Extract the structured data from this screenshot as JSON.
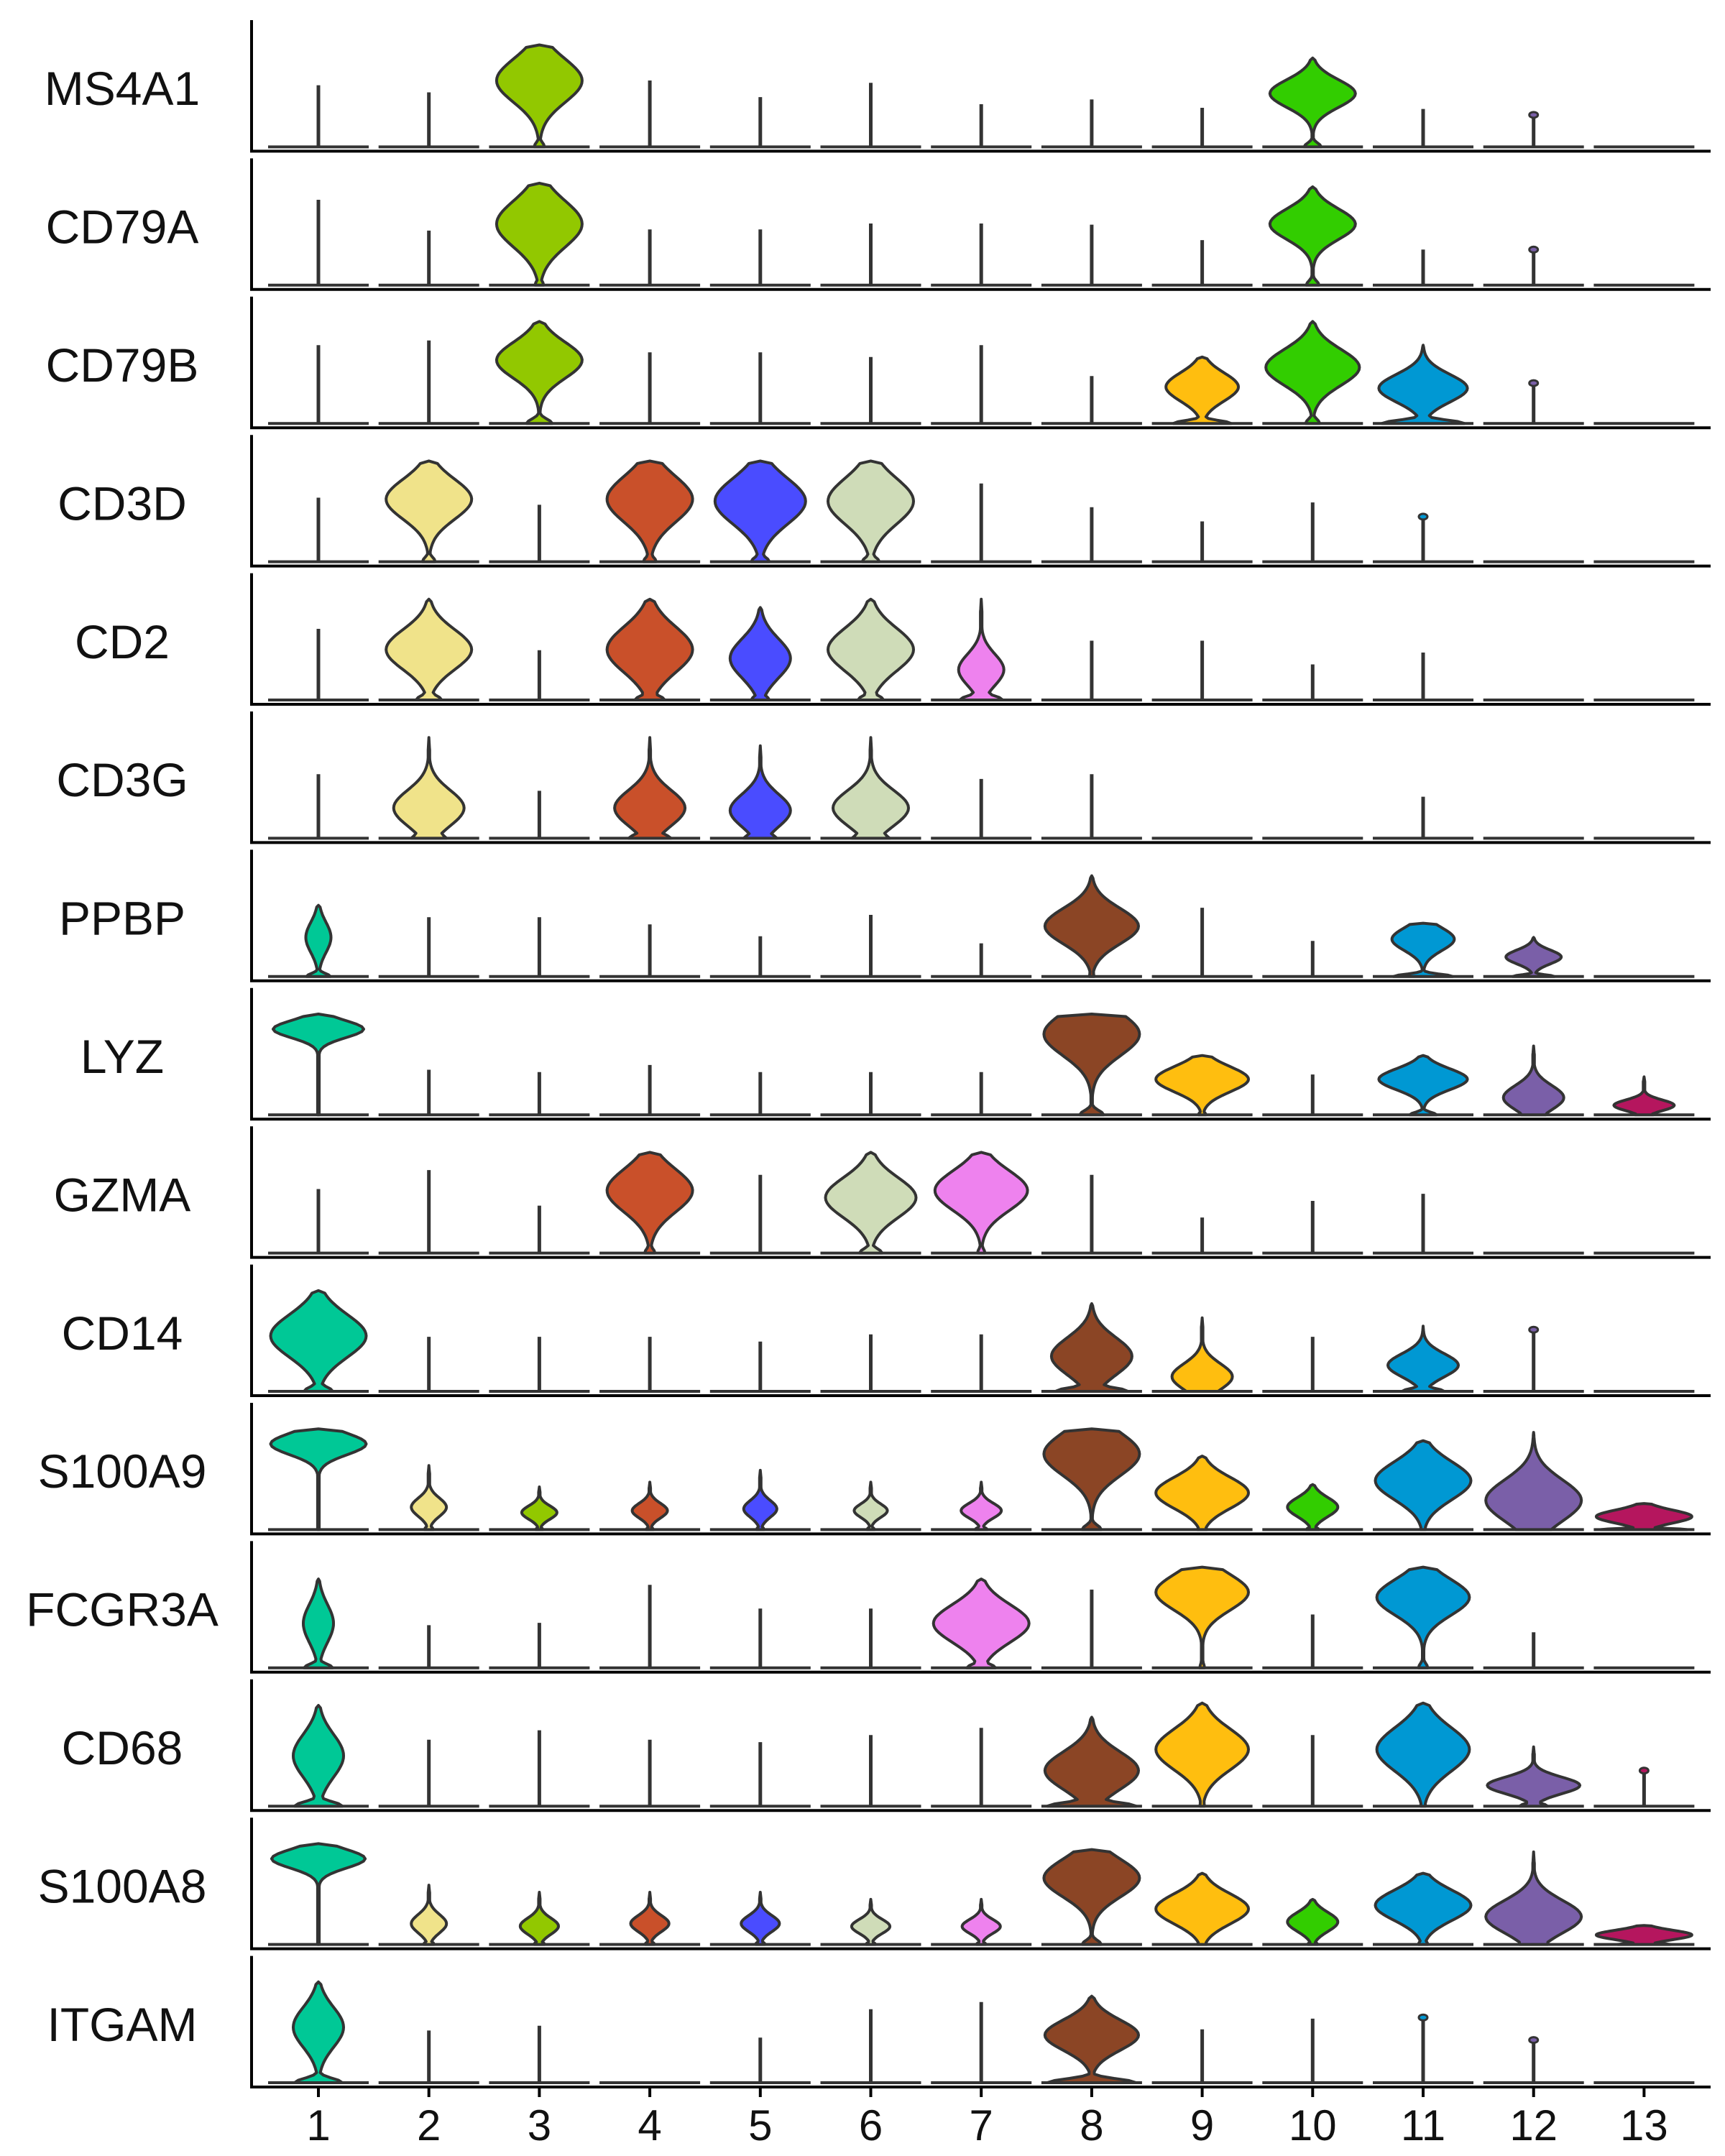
{
  "chart_data": {
    "type": "violin",
    "title": "",
    "xlabel": "",
    "ylabel": "",
    "categories": [
      "1",
      "2",
      "3",
      "4",
      "5",
      "6",
      "7",
      "8",
      "9",
      "10",
      "11",
      "12",
      "13"
    ],
    "colors": [
      "#00c896",
      "#f0e38a",
      "#92c800",
      "#c9502a",
      "#4a4cff",
      "#cfdcb8",
      "#ee82ee",
      "#8b4525",
      "#ffbe0f",
      "#32cd00",
      "#0098d3",
      "#7a5fa8",
      "#b5165e"
    ],
    "genes": [
      "MS4A1",
      "CD79A",
      "CD79B",
      "CD3D",
      "CD2",
      "CD3G",
      "PPBP",
      "LYZ",
      "GZMA",
      "CD14",
      "S100A9",
      "FCGR3A",
      "CD68",
      "S100A8",
      "ITGAM"
    ],
    "violins": [
      [
        {
          "h": 0.52
        },
        {
          "h": 0.46
        },
        {
          "h": 0.86,
          "w": 0.85,
          "p": 0.65,
          "s": 0.3,
          "b": 0.12
        },
        {
          "h": 0.56
        },
        {
          "h": 0.42
        },
        {
          "h": 0.54
        },
        {
          "h": 0.36
        },
        {
          "h": 0.4
        },
        {
          "h": 0.33
        },
        {
          "h": 0.75,
          "w": 0.85,
          "p": 0.6,
          "s": 0.22,
          "b": 0.2
        },
        {
          "h": 0.32
        },
        {
          "h": 0.27,
          "dot": true
        },
        {
          "h": 0.01
        }
      ],
      [
        {
          "h": 0.72
        },
        {
          "h": 0.46
        },
        {
          "h": 0.86,
          "w": 0.85,
          "p": 0.6,
          "s": 0.32,
          "b": 0.1
        },
        {
          "h": 0.47
        },
        {
          "h": 0.47
        },
        {
          "h": 0.52
        },
        {
          "h": 0.52
        },
        {
          "h": 0.51
        },
        {
          "h": 0.38
        },
        {
          "h": 0.83,
          "w": 0.85,
          "p": 0.62,
          "s": 0.22,
          "b": 0.15
        },
        {
          "h": 0.3
        },
        {
          "h": 0.3,
          "dot": true
        },
        {
          "h": 0.01
        }
      ],
      [
        {
          "h": 0.66
        },
        {
          "h": 0.7
        },
        {
          "h": 0.86,
          "w": 0.85,
          "p": 0.62,
          "s": 0.25,
          "b": 0.3
        },
        {
          "h": 0.6
        },
        {
          "h": 0.6
        },
        {
          "h": 0.56
        },
        {
          "h": 0.66
        },
        {
          "h": 0.4
        },
        {
          "h": 0.56,
          "w": 0.72,
          "p": 0.55,
          "s": 0.3,
          "b": 0.8
        },
        {
          "h": 0.86,
          "w": 0.93,
          "p": 0.55,
          "s": 0.25,
          "b": 0.15
        },
        {
          "h": 0.66,
          "w": 0.88,
          "p": 0.45,
          "s": 0.25,
          "b": 0.93
        },
        {
          "h": 0.34,
          "dot": true
        },
        {
          "h": 0.01
        }
      ],
      [
        {
          "h": 0.54
        },
        {
          "h": 0.85,
          "w": 0.85,
          "p": 0.62,
          "s": 0.28,
          "b": 0.15
        },
        {
          "h": 0.48
        },
        {
          "h": 0.85,
          "w": 0.85,
          "p": 0.62,
          "s": 0.32,
          "b": 0.15
        },
        {
          "h": 0.85,
          "w": 0.9,
          "p": 0.6,
          "s": 0.32,
          "b": 0.2
        },
        {
          "h": 0.85,
          "w": 0.85,
          "p": 0.6,
          "s": 0.32,
          "b": 0.2
        },
        {
          "h": 0.66
        },
        {
          "h": 0.46
        },
        {
          "h": 0.34
        },
        {
          "h": 0.5
        },
        {
          "h": 0.38,
          "dot": true
        },
        {
          "h": 0.01
        },
        {
          "h": 0.01
        }
      ],
      [
        {
          "h": 0.6
        },
        {
          "h": 0.85,
          "w": 0.85,
          "p": 0.5,
          "s": 0.28,
          "b": 0.3
        },
        {
          "h": 0.42
        },
        {
          "h": 0.85,
          "w": 0.85,
          "p": 0.5,
          "s": 0.32,
          "b": 0.35
        },
        {
          "h": 0.78,
          "w": 0.6,
          "p": 0.45,
          "s": 0.3,
          "b": 0.3
        },
        {
          "h": 0.85,
          "w": 0.85,
          "p": 0.5,
          "s": 0.3,
          "b": 0.3
        },
        {
          "h": 0.85,
          "w": 0.45,
          "p": 0.3,
          "s": 0.22,
          "b": 0.95
        },
        {
          "h": 0.5
        },
        {
          "h": 0.5
        },
        {
          "h": 0.3
        },
        {
          "h": 0.4
        },
        {
          "h": 0.01
        },
        {
          "h": 0.01
        }
      ],
      [
        {
          "h": 0.54
        },
        {
          "h": 0.85,
          "w": 0.7,
          "p": 0.3,
          "s": 0.25,
          "b": 0.5
        },
        {
          "h": 0.4
        },
        {
          "h": 0.85,
          "w": 0.7,
          "p": 0.3,
          "s": 0.25,
          "b": 0.6
        },
        {
          "h": 0.78,
          "w": 0.6,
          "p": 0.3,
          "s": 0.25,
          "b": 0.55
        },
        {
          "h": 0.85,
          "w": 0.75,
          "p": 0.3,
          "s": 0.25,
          "b": 0.5
        },
        {
          "h": 0.5
        },
        {
          "h": 0.54
        },
        {
          "h": 0.01
        },
        {
          "h": 0.01
        },
        {
          "h": 0.35
        },
        {
          "h": 0.01
        },
        {
          "h": 0.01
        }
      ],
      [
        {
          "h": 0.6,
          "w": 0.25,
          "p": 0.55,
          "s": 0.3,
          "b": 0.95
        },
        {
          "h": 0.5
        },
        {
          "h": 0.5
        },
        {
          "h": 0.44
        },
        {
          "h": 0.34
        },
        {
          "h": 0.52
        },
        {
          "h": 0.28
        },
        {
          "h": 0.85,
          "w": 0.93,
          "p": 0.5,
          "s": 0.25,
          "b": 0.05
        },
        {
          "h": 0.58
        },
        {
          "h": 0.3
        },
        {
          "h": 0.45,
          "w": 0.62,
          "p": 0.7,
          "s": 0.3,
          "b": 0.95
        },
        {
          "h": 0.33,
          "w": 0.55,
          "p": 0.5,
          "s": 0.25,
          "b": 0.75
        },
        {
          "h": 0.01
        }
      ],
      [
        {
          "h": 0.85,
          "w": 0.9,
          "p": 0.85,
          "s": 0.12,
          "b": 0.0
        },
        {
          "h": 0.38
        },
        {
          "h": 0.36
        },
        {
          "h": 0.42
        },
        {
          "h": 0.36
        },
        {
          "h": 0.36
        },
        {
          "h": 0.36
        },
        {
          "h": 0.85,
          "w": 0.95,
          "p": 0.8,
          "s": 0.3,
          "b": 0.25
        },
        {
          "h": 0.5,
          "w": 0.92,
          "p": 0.6,
          "s": 0.3,
          "b": 0.08
        },
        {
          "h": 0.34
        },
        {
          "h": 0.5,
          "w": 0.88,
          "p": 0.6,
          "s": 0.25,
          "b": 0.3
        },
        {
          "h": 0.58,
          "w": 0.6,
          "p": 0.25,
          "s": 0.25,
          "b": 0.4
        },
        {
          "h": 0.32,
          "w": 0.6,
          "p": 0.25,
          "s": 0.2,
          "b": 0.3
        }
      ],
      [
        {
          "h": 0.54
        },
        {
          "h": 0.7
        },
        {
          "h": 0.4
        },
        {
          "h": 0.85,
          "w": 0.85,
          "p": 0.62,
          "s": 0.3,
          "b": 0.12
        },
        {
          "h": 0.66
        },
        {
          "h": 0.85,
          "w": 0.9,
          "p": 0.55,
          "s": 0.28,
          "b": 0.25
        },
        {
          "h": 0.85,
          "w": 0.92,
          "p": 0.62,
          "s": 0.28,
          "b": 0.08
        },
        {
          "h": 0.66
        },
        {
          "h": 0.3
        },
        {
          "h": 0.44
        },
        {
          "h": 0.5
        },
        {
          "h": 0.01
        },
        {
          "h": 0.01
        }
      ],
      [
        {
          "h": 0.85,
          "w": 0.95,
          "p": 0.55,
          "s": 0.3,
          "b": 0.3
        },
        {
          "h": 0.46
        },
        {
          "h": 0.46
        },
        {
          "h": 0.46
        },
        {
          "h": 0.42
        },
        {
          "h": 0.48
        },
        {
          "h": 0.48
        },
        {
          "h": 0.74,
          "w": 0.8,
          "p": 0.4,
          "s": 0.3,
          "b": 0.9
        },
        {
          "h": 0.62,
          "w": 0.6,
          "p": 0.2,
          "s": 0.25,
          "b": 0.25
        },
        {
          "h": 0.46
        },
        {
          "h": 0.55,
          "w": 0.7,
          "p": 0.4,
          "s": 0.25,
          "b": 0.6
        },
        {
          "h": 0.52,
          "dot": true
        },
        {
          "h": 0.01
        }
      ],
      [
        {
          "h": 0.85,
          "w": 0.95,
          "p": 0.85,
          "s": 0.15,
          "b": 0.0
        },
        {
          "h": 0.54,
          "w": 0.35,
          "p": 0.35,
          "s": 0.2,
          "b": 0.25
        },
        {
          "h": 0.36,
          "w": 0.35,
          "p": 0.4,
          "s": 0.22,
          "b": 0.2
        },
        {
          "h": 0.4,
          "w": 0.35,
          "p": 0.4,
          "s": 0.22,
          "b": 0.2
        },
        {
          "h": 0.5,
          "w": 0.33,
          "p": 0.35,
          "s": 0.2,
          "b": 0.22
        },
        {
          "h": 0.4,
          "w": 0.33,
          "p": 0.4,
          "s": 0.2,
          "b": 0.22
        },
        {
          "h": 0.4,
          "w": 0.4,
          "p": 0.4,
          "s": 0.22,
          "b": 0.3
        },
        {
          "h": 0.85,
          "w": 0.95,
          "p": 0.75,
          "s": 0.3,
          "b": 0.2
        },
        {
          "h": 0.62,
          "w": 0.92,
          "p": 0.5,
          "s": 0.3,
          "b": 0.1
        },
        {
          "h": 0.38,
          "w": 0.5,
          "p": 0.5,
          "s": 0.3,
          "b": 0.25
        },
        {
          "h": 0.75,
          "w": 0.95,
          "p": 0.55,
          "s": 0.3,
          "b": 0.05
        },
        {
          "h": 0.82,
          "w": 0.95,
          "p": 0.3,
          "s": 0.3,
          "b": 0.1
        },
        {
          "h": 0.22,
          "w": 0.95,
          "p": 0.5,
          "s": 0.35,
          "b": 0.9
        }
      ],
      [
        {
          "h": 0.75,
          "w": 0.3,
          "p": 0.5,
          "s": 0.3,
          "b": 0.95
        },
        {
          "h": 0.36
        },
        {
          "h": 0.38
        },
        {
          "h": 0.7
        },
        {
          "h": 0.5
        },
        {
          "h": 0.5
        },
        {
          "h": 0.75,
          "w": 0.95,
          "p": 0.5,
          "s": 0.3,
          "b": 0.3
        },
        {
          "h": 0.66
        },
        {
          "h": 0.85,
          "w": 0.92,
          "p": 0.75,
          "s": 0.25,
          "b": 0.05
        },
        {
          "h": 0.45
        },
        {
          "h": 0.85,
          "w": 0.92,
          "p": 0.7,
          "s": 0.25,
          "b": 0.1
        },
        {
          "h": 0.3
        },
        {
          "h": 0.01
        }
      ],
      [
        {
          "h": 0.85,
          "w": 0.5,
          "p": 0.5,
          "s": 0.3,
          "b": 0.95
        },
        {
          "h": 0.56
        },
        {
          "h": 0.64
        },
        {
          "h": 0.56
        },
        {
          "h": 0.54
        },
        {
          "h": 0.6
        },
        {
          "h": 0.66
        },
        {
          "h": 0.75,
          "w": 0.93,
          "p": 0.4,
          "s": 0.3,
          "b": 0.95
        },
        {
          "h": 0.87,
          "w": 0.92,
          "p": 0.55,
          "s": 0.28,
          "b": 0.05
        },
        {
          "h": 0.6
        },
        {
          "h": 0.87,
          "w": 0.92,
          "p": 0.55,
          "s": 0.3,
          "b": 0.05
        },
        {
          "h": 0.5,
          "w": 0.92,
          "p": 0.35,
          "s": 0.2,
          "b": 0.3
        },
        {
          "h": 0.3,
          "dot": true
        }
      ],
      [
        {
          "h": 0.85,
          "w": 0.93,
          "p": 0.85,
          "s": 0.13,
          "b": 0.0
        },
        {
          "h": 0.5,
          "w": 0.35,
          "p": 0.35,
          "s": 0.22,
          "b": 0.3
        },
        {
          "h": 0.44,
          "w": 0.38,
          "p": 0.35,
          "s": 0.22,
          "b": 0.28
        },
        {
          "h": 0.44,
          "w": 0.38,
          "p": 0.4,
          "s": 0.22,
          "b": 0.25
        },
        {
          "h": 0.44,
          "w": 0.38,
          "p": 0.4,
          "s": 0.22,
          "b": 0.25
        },
        {
          "h": 0.38,
          "w": 0.38,
          "p": 0.4,
          "s": 0.22,
          "b": 0.25
        },
        {
          "h": 0.38,
          "w": 0.38,
          "p": 0.4,
          "s": 0.22,
          "b": 0.25
        },
        {
          "h": 0.8,
          "w": 0.95,
          "p": 0.7,
          "s": 0.28,
          "b": 0.2
        },
        {
          "h": 0.6,
          "w": 0.92,
          "p": 0.5,
          "s": 0.3,
          "b": 0.1
        },
        {
          "h": 0.38,
          "w": 0.5,
          "p": 0.5,
          "s": 0.3,
          "b": 0.2
        },
        {
          "h": 0.6,
          "w": 0.95,
          "p": 0.55,
          "s": 0.3,
          "b": 0.1
        },
        {
          "h": 0.78,
          "w": 0.95,
          "p": 0.3,
          "s": 0.25,
          "b": 0.3
        },
        {
          "h": 0.16,
          "w": 0.95,
          "p": 0.5,
          "s": 0.35,
          "b": 0.55
        }
      ],
      [
        {
          "h": 0.85,
          "w": 0.5,
          "p": 0.55,
          "s": 0.28,
          "b": 0.95
        },
        {
          "h": 0.44
        },
        {
          "h": 0.48
        },
        {
          "h": 0.01
        },
        {
          "h": 0.38
        },
        {
          "h": 0.62
        },
        {
          "h": 0.68
        },
        {
          "h": 0.73,
          "w": 0.93,
          "p": 0.55,
          "s": 0.25,
          "b": 0.95
        },
        {
          "h": 0.45
        },
        {
          "h": 0.54
        },
        {
          "h": 0.55,
          "dot": true
        },
        {
          "h": 0.36,
          "dot": true
        },
        {
          "h": 0.01
        }
      ]
    ]
  }
}
